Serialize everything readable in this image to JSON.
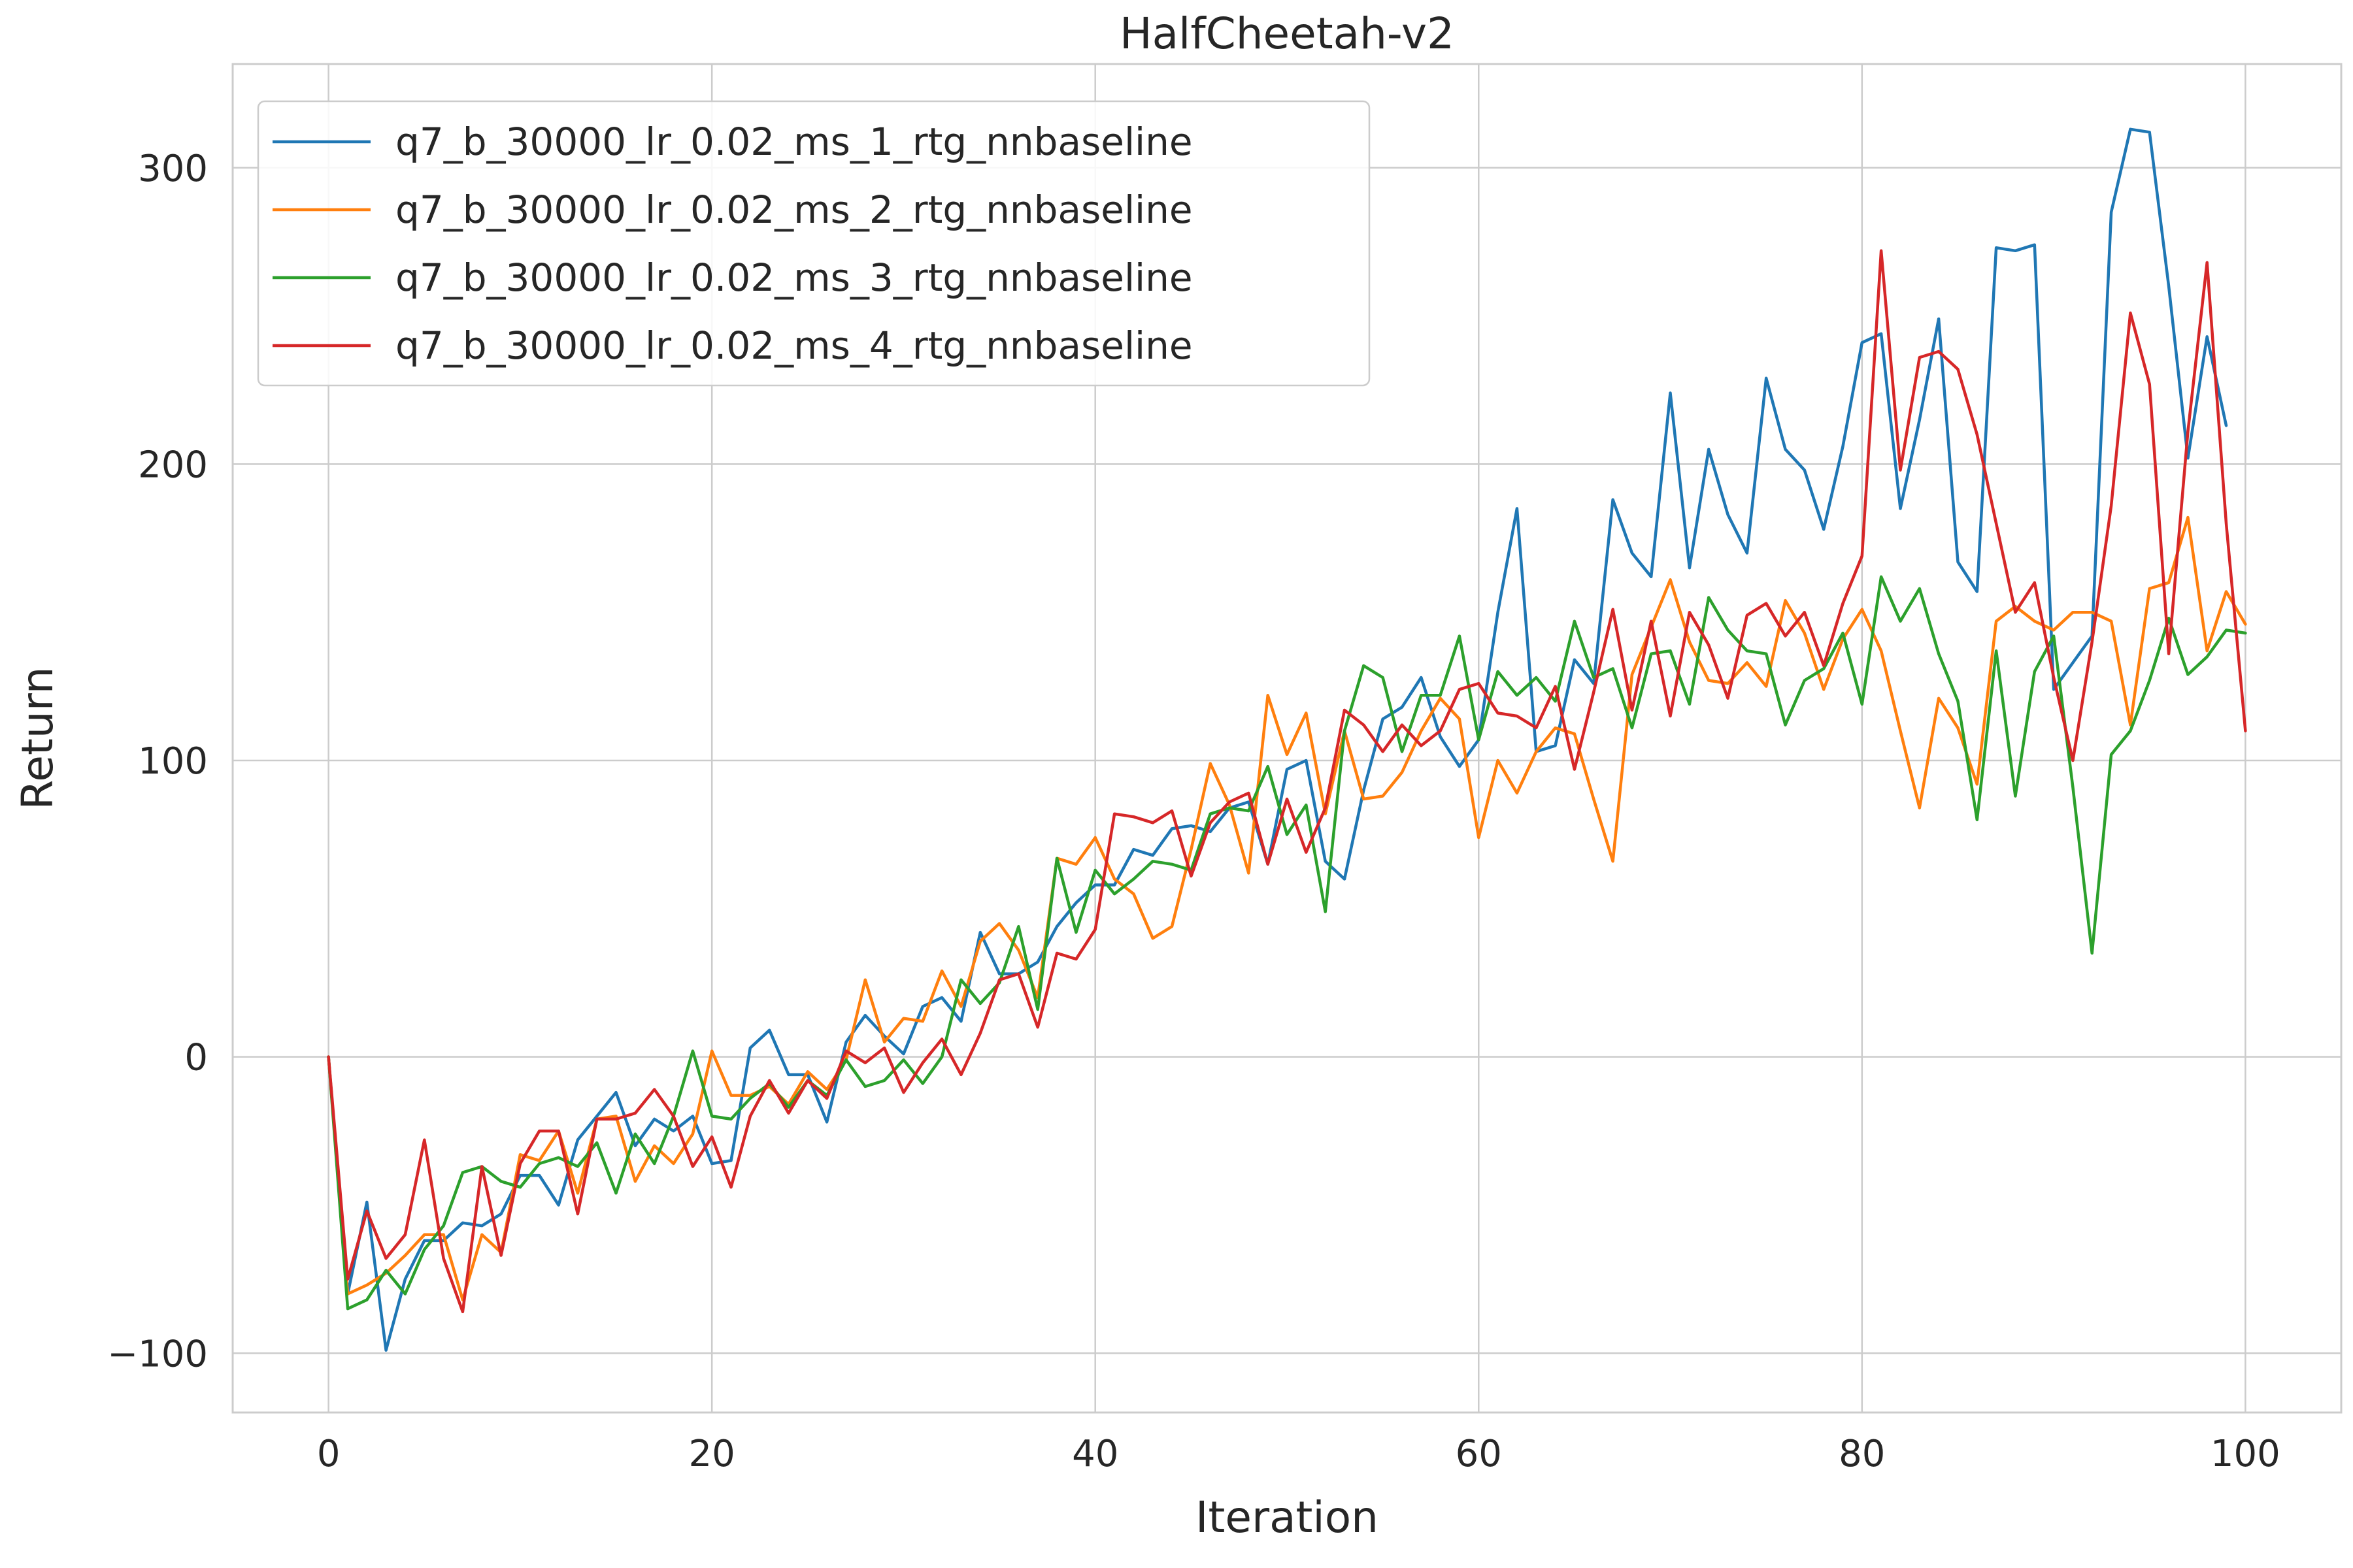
{
  "chart_data": {
    "type": "line",
    "title": "HalfCheetah-v2",
    "xlabel": "Iteration",
    "ylabel": "Return",
    "xlim": [
      -5,
      105
    ],
    "ylim": [
      -120,
      335
    ],
    "xticks": [
      0,
      20,
      40,
      60,
      80,
      100
    ],
    "yticks": [
      -100,
      0,
      100,
      200,
      300
    ],
    "ytick_labels": [
      "−100",
      "0",
      "100",
      "200",
      "300"
    ],
    "grid": true,
    "legend_position": "top-left",
    "series": [
      {
        "name": "q7_b_30000_lr_0.02_ms_1_rtg_nnbaseline",
        "color": "#1f77b4",
        "values": [
          0,
          -80,
          -49,
          -99,
          -75,
          -62,
          -62,
          -56,
          -57,
          -53,
          -40,
          -40,
          -50,
          -28,
          -20,
          -12,
          -30,
          -21,
          -25,
          -20,
          -36,
          -35,
          3,
          9,
          -6,
          -6,
          -22,
          5,
          14,
          7,
          1,
          17,
          20,
          12,
          42,
          28,
          28,
          32,
          44,
          52,
          58,
          58,
          70,
          68,
          77,
          78,
          76,
          84,
          86,
          65,
          97,
          100,
          66,
          60,
          90,
          114,
          118,
          128,
          108,
          98,
          107,
          150,
          185,
          103,
          105,
          134,
          126,
          188,
          170,
          162,
          224,
          165,
          205,
          183,
          170,
          229,
          205,
          198,
          178,
          206,
          241,
          244,
          185,
          215,
          249,
          167,
          157,
          273,
          272,
          274,
          124,
          133,
          142,
          285,
          313,
          312,
          260,
          202,
          243,
          213
        ]
      },
      {
        "name": "q7_b_30000_lr_0.02_ms_2_rtg_nnbaseline",
        "color": "#ff7f0e",
        "values": [
          0,
          -80,
          -77,
          -73,
          -67,
          -60,
          -60,
          -82,
          -60,
          -66,
          -33,
          -35,
          -25,
          -46,
          -21,
          -20,
          -42,
          -30,
          -36,
          -26,
          2,
          -13,
          -13,
          -10,
          -16,
          -5,
          -11,
          -1,
          26,
          5,
          13,
          12,
          29,
          17,
          39,
          45,
          36,
          20,
          67,
          65,
          74,
          60,
          55,
          40,
          44,
          70,
          99,
          85,
          62,
          122,
          102,
          116,
          82,
          110,
          87,
          88,
          96,
          110,
          121,
          114,
          74,
          100,
          89,
          103,
          111,
          109,
          87,
          66,
          129,
          145,
          161,
          140,
          127,
          126,
          133,
          125,
          154,
          143,
          124,
          141,
          151,
          137,
          110,
          84,
          121,
          111,
          92,
          147,
          152,
          147,
          144,
          150,
          150,
          147,
          112,
          158,
          160,
          182,
          137,
          157,
          146
        ]
      },
      {
        "name": "q7_b_30000_lr_0.02_ms_3_rtg_nnbaseline",
        "color": "#2ca02c",
        "values": [
          0,
          -85,
          -82,
          -72,
          -80,
          -65,
          -57,
          -39,
          -37,
          -42,
          -44,
          -36,
          -34,
          -37,
          -29,
          -46,
          -26,
          -36,
          -20,
          2,
          -20,
          -21,
          -14,
          -9,
          -17,
          -8,
          -13,
          -1,
          -10,
          -8,
          -1,
          -9,
          0,
          26,
          18,
          25,
          44,
          16,
          67,
          42,
          63,
          55,
          60,
          66,
          65,
          63,
          82,
          84,
          83,
          98,
          75,
          85,
          49,
          110,
          132,
          128,
          103,
          122,
          122,
          142,
          107,
          130,
          122,
          128,
          120,
          147,
          128,
          131,
          111,
          136,
          137,
          119,
          155,
          144,
          137,
          136,
          112,
          127,
          131,
          143,
          119,
          162,
          147,
          158,
          136,
          120,
          80,
          137,
          88,
          130,
          142,
          91,
          35,
          102,
          110,
          127,
          148,
          129,
          135,
          144,
          143
        ]
      },
      {
        "name": "q7_b_30000_lr_0.02_ms_4_rtg_nnbaseline",
        "color": "#d62728",
        "values": [
          0,
          -75,
          -52,
          -68,
          -60,
          -28,
          -68,
          -86,
          -37,
          -67,
          -36,
          -25,
          -25,
          -53,
          -21,
          -21,
          -19,
          -11,
          -20,
          -37,
          -27,
          -44,
          -20,
          -8,
          -19,
          -8,
          -14,
          2,
          -2,
          3,
          -12,
          -2,
          6,
          -6,
          8,
          26,
          28,
          10,
          35,
          33,
          43,
          82,
          81,
          79,
          83,
          61,
          79,
          86,
          89,
          65,
          87,
          69,
          84,
          117,
          112,
          103,
          112,
          105,
          110,
          124,
          126,
          116,
          115,
          111,
          125,
          97,
          123,
          151,
          117,
          147,
          115,
          150,
          139,
          121,
          149,
          153,
          142,
          150,
          132,
          153,
          169,
          272,
          198,
          236,
          238,
          232,
          210,
          180,
          150,
          160,
          128,
          100,
          140,
          186,
          251,
          227,
          136,
          211,
          268,
          180,
          110
        ]
      }
    ]
  }
}
